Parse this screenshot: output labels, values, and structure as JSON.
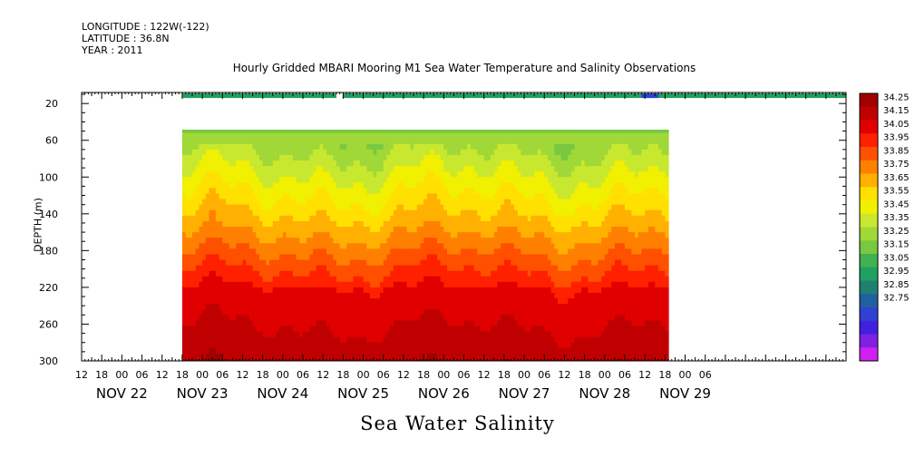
{
  "header": {
    "longitude": "LONGITUDE : 122W(-122)",
    "latitude": "LATITUDE : 36.8N",
    "year": "YEAR : 2011",
    "title": "Hourly Gridded MBARI Mooring M1 Sea Water Temperature and Salinity Observations"
  },
  "chart_data": {
    "type": "heatmap",
    "title": "Hourly Gridded MBARI Mooring M1 Sea Water Temperature and Salinity Observations",
    "xlabel": "Sea Water Salinity",
    "ylabel": "DEPTH (m)",
    "x_hour_ticks": [
      "12",
      "18",
      "00",
      "06",
      "12",
      "18",
      "00",
      "06",
      "12",
      "18",
      "00",
      "06",
      "12",
      "18",
      "00",
      "06",
      "12",
      "18",
      "00",
      "06",
      "12",
      "18",
      "00",
      "06",
      "12",
      "18",
      "00",
      "06",
      "12",
      "18",
      "00",
      "06"
    ],
    "x_date_labels": [
      "NOV 22",
      "NOV 23",
      "NOV 24",
      "NOV 25",
      "NOV 26",
      "NOV 27",
      "NOV 28",
      "NOV 29"
    ],
    "x_range_hours": [
      12,
      240
    ],
    "y_ticks": [
      20,
      60,
      100,
      140,
      180,
      220,
      260,
      300
    ],
    "ylim": [
      300,
      8
    ],
    "colorbar_levels": [
      "34.25",
      "34.15",
      "34.05",
      "33.95",
      "33.85",
      "33.75",
      "33.65",
      "33.55",
      "33.45",
      "33.35",
      "33.25",
      "33.15",
      "33.05",
      "32.95",
      "32.85",
      "32.75"
    ],
    "colorbar_colors": [
      "#a00000",
      "#c00000",
      "#e00000",
      "#ff2000",
      "#ff5000",
      "#ff8000",
      "#ffb000",
      "#ffe000",
      "#f0f000",
      "#c8e830",
      "#a0d838",
      "#78c840",
      "#40b050",
      "#20a060",
      "#208070",
      "#2060a0",
      "#3040d0",
      "#4020e0",
      "#8020e0",
      "#d020f0"
    ],
    "surface_salinity": 33.3,
    "data_period": [
      "NOV 22 18:00",
      "NOV 28 19:00"
    ],
    "surface_gap": [
      "NOV 24 16:00",
      "NOV 25 06:00"
    ],
    "note": "Salinity increases with depth from about 33.4 near 40 m to about 34.2 near 260-300 m"
  }
}
